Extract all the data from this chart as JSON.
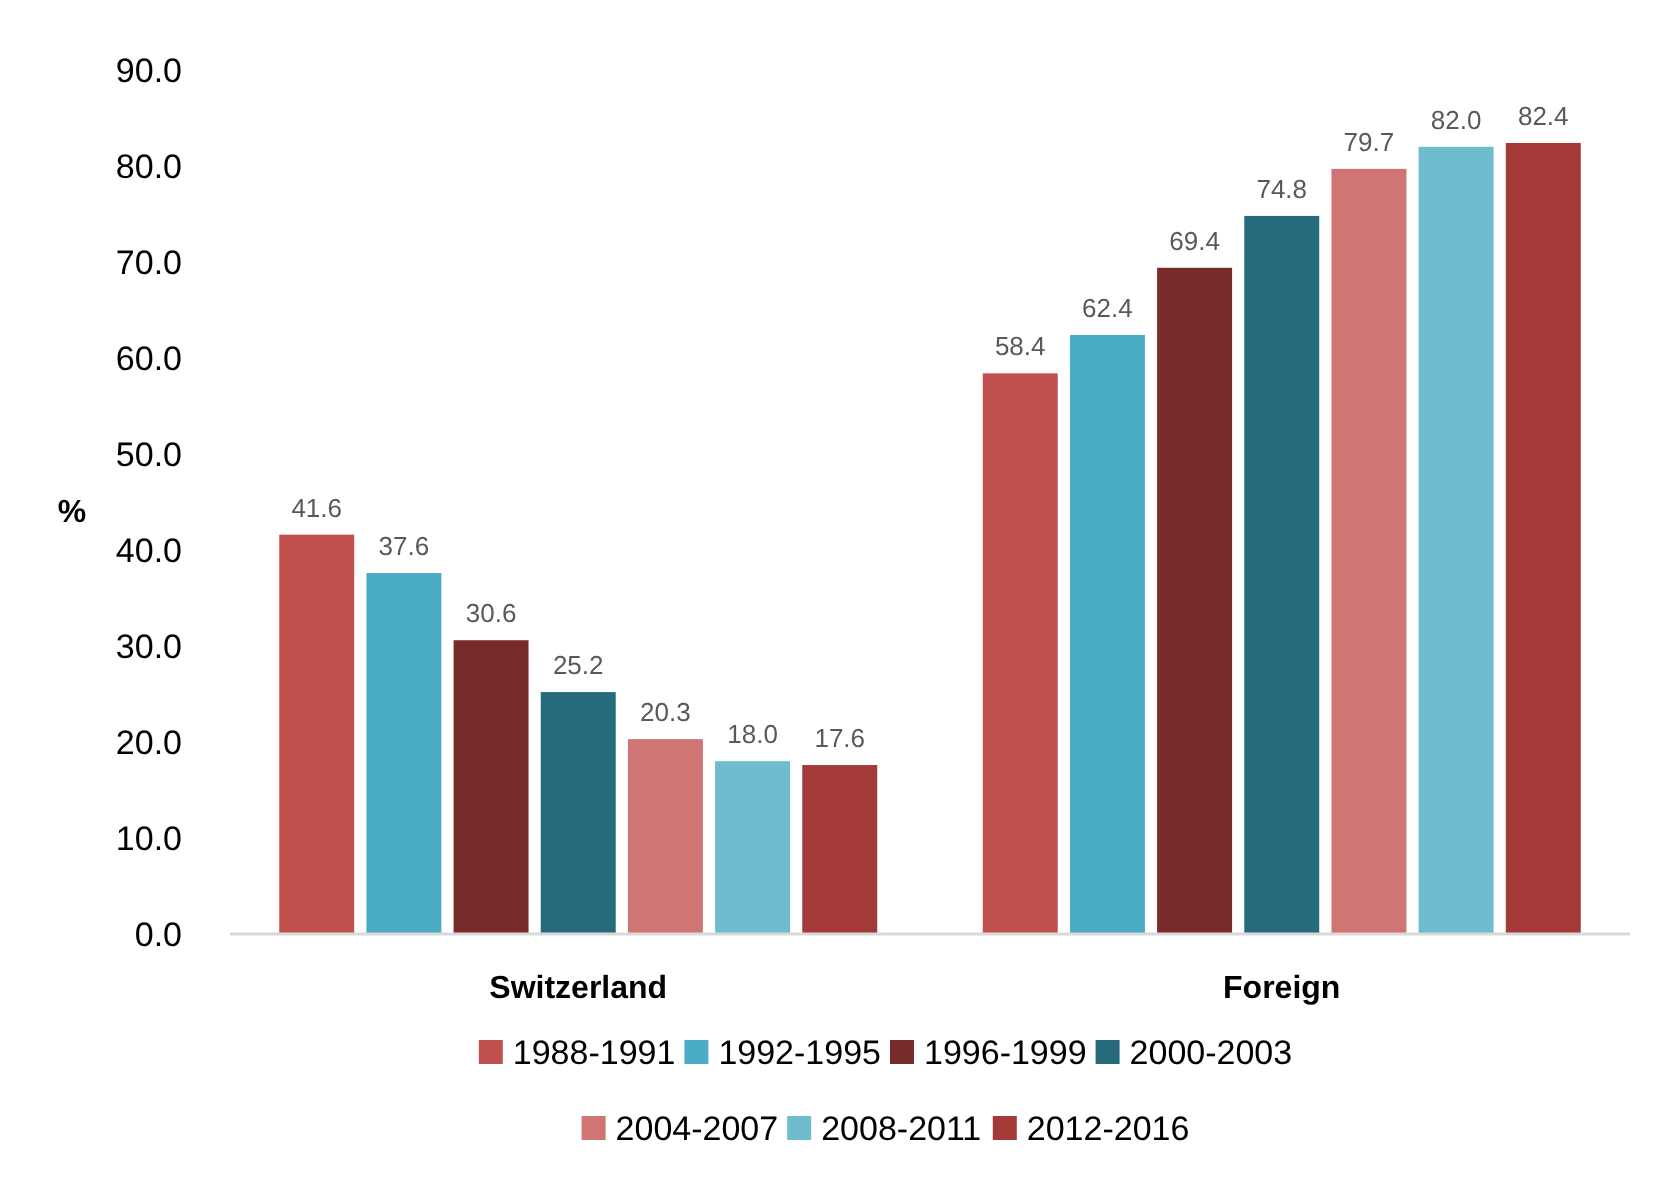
{
  "chart_data": {
    "type": "bar",
    "ylabel": "%",
    "categories": [
      "Switzerland",
      "Foreign"
    ],
    "series": [
      {
        "name": "1988-1991",
        "color": "#c0504d",
        "values": [
          41.6,
          58.4
        ],
        "value_labels": [
          "41.6",
          "58.4"
        ]
      },
      {
        "name": "1992-1995",
        "color": "#4bacc6",
        "values": [
          37.6,
          62.4
        ],
        "value_labels": [
          "37.6",
          "62.4"
        ]
      },
      {
        "name": "1996-1999",
        "color": "#772c2a",
        "values": [
          30.6,
          69.4
        ],
        "value_labels": [
          "30.6",
          "69.4"
        ]
      },
      {
        "name": "2000-2003",
        "color": "#276a7c",
        "values": [
          25.2,
          74.8
        ],
        "value_labels": [
          "25.2",
          "74.8"
        ]
      },
      {
        "name": "2004-2007",
        "color": "#d07574",
        "values": [
          20.3,
          79.7
        ],
        "value_labels": [
          "20.3",
          "79.7"
        ]
      },
      {
        "name": "2008-2011",
        "color": "#6fbcd1",
        "values": [
          18.0,
          82.0
        ],
        "value_labels": [
          "18.0",
          "82.0"
        ]
      },
      {
        "name": "2012-2016",
        "color": "#a33a38",
        "values": [
          17.6,
          82.4
        ],
        "value_labels": [
          "17.6",
          "82.4"
        ]
      }
    ],
    "ylim": [
      0,
      90
    ],
    "yticks": [
      {
        "value": 0,
        "label": "0.0"
      },
      {
        "value": 10,
        "label": "10.0"
      },
      {
        "value": 20,
        "label": "20.0"
      },
      {
        "value": 30,
        "label": "30.0"
      },
      {
        "value": 40,
        "label": "40.0"
      },
      {
        "value": 50,
        "label": "50.0"
      },
      {
        "value": 60,
        "label": "60.0"
      },
      {
        "value": 70,
        "label": "70.0"
      },
      {
        "value": 80,
        "label": "80.0"
      },
      {
        "value": 90,
        "label": "90.0"
      }
    ],
    "grid": false,
    "legend": "bottom"
  }
}
